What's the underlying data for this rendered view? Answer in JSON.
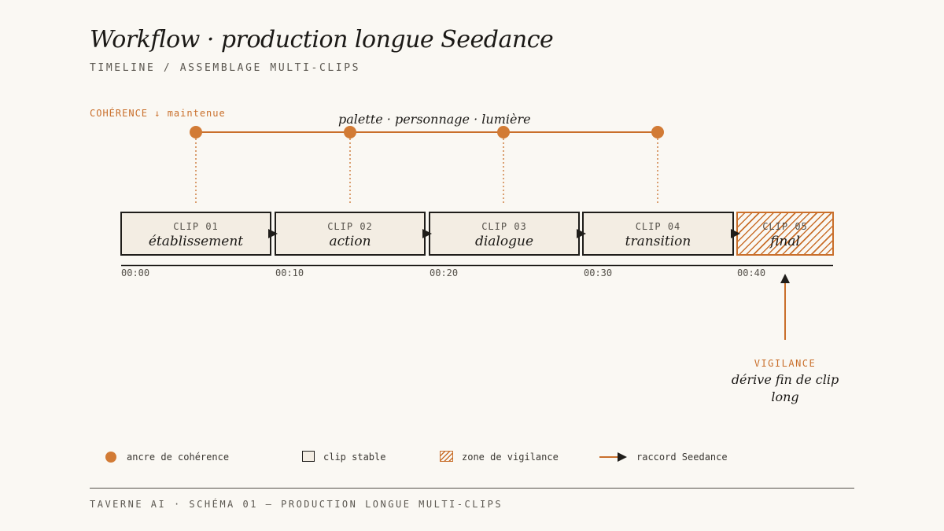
{
  "header": {
    "title": "Workflow · production longue Seedance",
    "subtitle": "TIMELINE / ASSEMBLAGE MULTI-CLIPS"
  },
  "coherence": {
    "label": "COHÉRENCE ↓ maintenue",
    "caption": "palette · personnage · lumière",
    "anchor_count": 4
  },
  "clips": [
    {
      "num": "CLIP 01",
      "name": "établissement"
    },
    {
      "num": "CLIP 02",
      "name": "action"
    },
    {
      "num": "CLIP 03",
      "name": "dialogue"
    },
    {
      "num": "CLIP 04",
      "name": "transition"
    },
    {
      "num": "CLIP 05",
      "name": "final"
    }
  ],
  "timeline": {
    "ticks": [
      "00:00",
      "00:10",
      "00:20",
      "00:30",
      "00:40"
    ]
  },
  "vigilance": {
    "label": "VIGILANCE",
    "description": "dérive fin de clip long"
  },
  "legend": {
    "anchor": "ancre de cohérence",
    "stable": "clip stable",
    "vigilance": "zone de vigilance",
    "raccord": "raccord Seedance"
  },
  "footer": "TAVERNE AI · SCHÉMA 01 — PRODUCTION LONGUE MULTI-CLIPS",
  "colors": {
    "accent": "#c96f2b",
    "ink": "#1f1d1a",
    "background": "#faf8f3",
    "clip_fill": "#f3ede3"
  }
}
